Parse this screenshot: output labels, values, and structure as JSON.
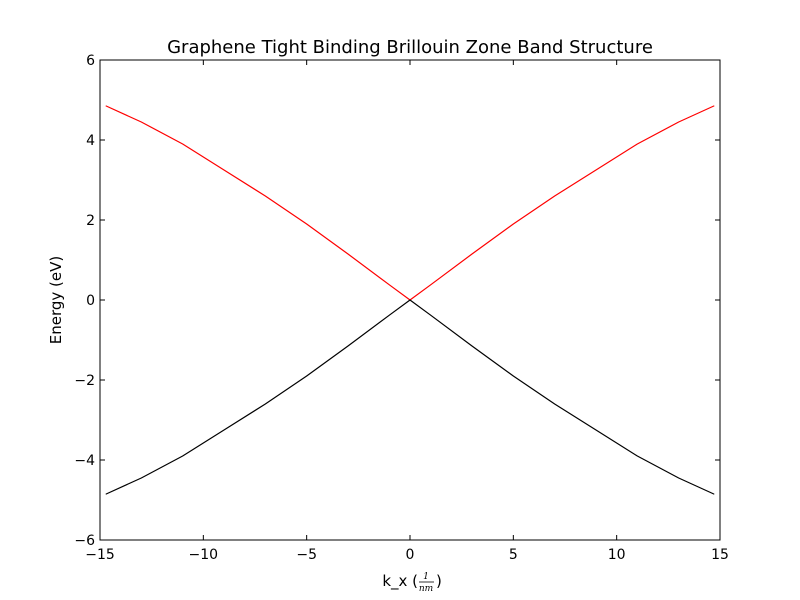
{
  "chart_data": {
    "type": "line",
    "title": "Graphene Tight Binding Brillouin Zone Band Structure",
    "xlabel": {
      "prefix": "k_x (",
      "numerator": "1",
      "denominator": "nm",
      "suffix": ")"
    },
    "ylabel": "Energy (eV)",
    "xlim": [
      -15,
      15
    ],
    "ylim": [
      -6,
      6
    ],
    "xticks": [
      -15,
      -10,
      -5,
      0,
      5,
      10,
      15
    ],
    "yticks": [
      -6,
      -4,
      -2,
      0,
      2,
      4,
      6
    ],
    "xtick_labels": [
      "−15",
      "−10",
      "−5",
      "0",
      "5",
      "10",
      "15"
    ],
    "ytick_labels": [
      "−6",
      "−4",
      "−2",
      "0",
      "2",
      "4",
      "6"
    ],
    "grid": false,
    "series": [
      {
        "color": "#ff0000",
        "x": [
          -14.7,
          -13,
          -11,
          -9,
          -7,
          -5,
          -3,
          -1,
          0,
          1,
          3,
          5,
          7,
          9,
          11,
          13,
          14.7
        ],
        "y": [
          4.85,
          4.45,
          3.9,
          3.25,
          2.6,
          1.9,
          1.15,
          0.38,
          0,
          0.38,
          1.15,
          1.9,
          2.6,
          3.25,
          3.9,
          4.45,
          4.85
        ]
      },
      {
        "color": "#000000",
        "x": [
          -14.7,
          -13,
          -11,
          -9,
          -7,
          -5,
          -3,
          -1,
          0,
          1,
          3,
          5,
          7,
          9,
          11,
          13,
          14.7
        ],
        "y": [
          -4.85,
          -4.45,
          -3.9,
          -3.25,
          -2.6,
          -1.9,
          -1.15,
          -0.38,
          0,
          -0.38,
          -1.15,
          -1.9,
          -2.6,
          -3.25,
          -3.9,
          -4.45,
          -4.85
        ]
      }
    ]
  }
}
